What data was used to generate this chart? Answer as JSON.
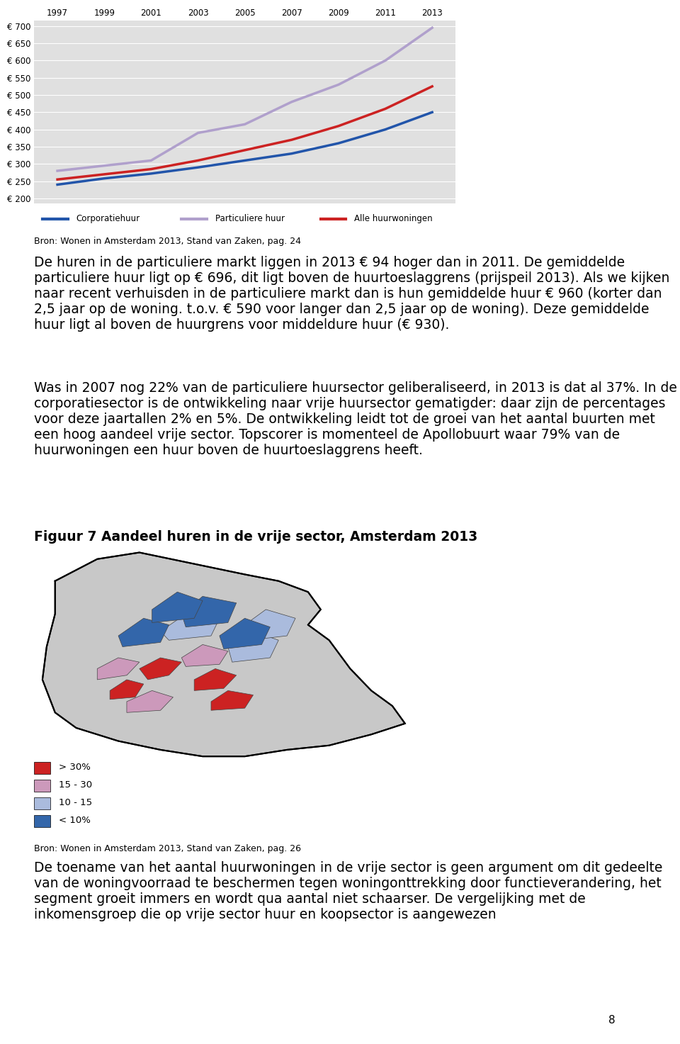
{
  "chart_years": [
    1997,
    1999,
    2001,
    2003,
    2005,
    2007,
    2009,
    2011,
    2013
  ],
  "corporatiehuur": [
    240,
    258,
    272,
    290,
    310,
    330,
    360,
    400,
    450
  ],
  "particuliere_huur": [
    280,
    295,
    310,
    390,
    415,
    480,
    530,
    600,
    695
  ],
  "alle_huurwoningen": [
    255,
    270,
    285,
    310,
    340,
    370,
    410,
    460,
    525
  ],
  "corporatiehuur_color": "#2255aa",
  "particuliere_huur_color": "#b0a0cc",
  "alle_huurwoningen_color": "#cc2222",
  "chart_bg": "#e0e0e0",
  "yticks": [
    200,
    250,
    300,
    350,
    400,
    450,
    500,
    550,
    600,
    650,
    700
  ],
  "ylim": [
    185,
    715
  ],
  "xlim": [
    1996,
    2014
  ],
  "legend_labels": [
    "Corporatiehuur",
    "Particuliere huur",
    "Alle huurwoningen"
  ],
  "source_chart": "Bron: Wonen in Amsterdam 2013, Stand van Zaken, pag. 24",
  "paragraph1": "De huren in de particuliere markt liggen in 2013 € 94 hoger dan in 2011. De gemiddelde particuliere huur ligt op € 696, dit ligt boven de huurtoeslaggrens (prijspeil 2013). Als we kijken naar recent verhuisden in de particuliere markt dan is hun gemiddelde huur € 960 (korter dan 2,5 jaar op de woning. t.o.v. € 590 voor langer dan 2,5 jaar op de woning). Deze gemiddelde huur ligt al boven de huurgrens voor middeldure huur (€ 930).",
  "paragraph2": "Was in 2007 nog 22% van de particuliere huursector geliberaliseerd, in 2013 is dat al 37%. In de corporatiesector is de ontwikkeling naar vrije huursector gematigder: daar zijn de percentages voor deze jaartallen 2% en 5%. De ontwikkeling leidt tot de groei van het aantal buurten met een hoog aandeel vrije sector. Topscorer is momenteel de Apollobuurt waar 79% van de huurwoningen een huur boven de huurtoeslaggrens heeft.",
  "map_title": "Figuur 7 Aandeel huren in de vrije sector, Amsterdam 2013",
  "source_map": "Bron: Wonen in Amsterdam 2013, Stand van Zaken, pag. 26",
  "paragraph3": "De toename van het aantal huurwoningen in de vrije sector is geen argument om dit gedeelte van de woningvoorraad te beschermen tegen woningonttrekking door functieverandering, het segment groeit immers en wordt qua aantal niet schaarser. De vergelijking met de inkomensgroep die op vrije sector huur en koopsector is aangewezen",
  "legend_items": [
    {
      "label": "> 30%",
      "color": "#cc2222"
    },
    {
      "label": "15 - 30",
      "color": "#cc99bb"
    },
    {
      "label": "10 - 15",
      "color": "#aabbdd"
    },
    {
      "label": "< 10%",
      "color": "#3366aa"
    }
  ],
  "page_number": "8",
  "body_fontsize": 13.5,
  "title_fontsize": 13.5
}
